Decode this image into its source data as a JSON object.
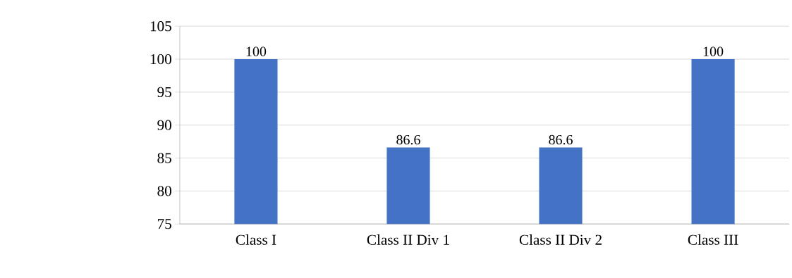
{
  "chart_data": {
    "type": "bar",
    "categories": [
      "Class I",
      "Class II Div 1",
      "Class II Div 2",
      "Class III"
    ],
    "values": [
      100,
      86.6,
      86.6,
      100
    ],
    "color": "#4472c4",
    "ylim": [
      75,
      105
    ],
    "yticks": [
      75,
      80,
      85,
      90,
      95,
      100,
      105
    ],
    "grid": "y",
    "data_labels": true
  }
}
